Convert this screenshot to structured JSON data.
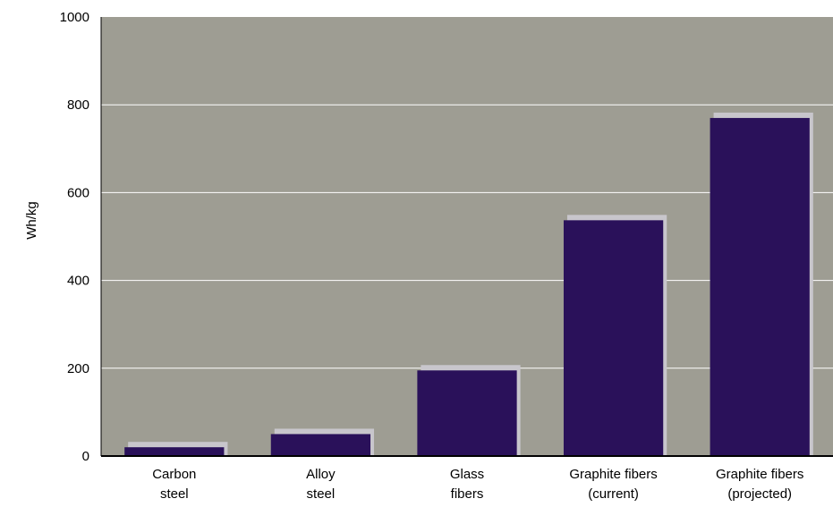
{
  "chart_data": {
    "type": "bar",
    "title": "",
    "xlabel": "",
    "ylabel": "Wh/kg",
    "ylim": [
      0,
      1000
    ],
    "yticks": [
      0,
      200,
      400,
      600,
      800,
      1000
    ],
    "grid": true,
    "categories": [
      [
        "Carbon",
        "steel"
      ],
      [
        "Alloy",
        "steel"
      ],
      [
        "Glass",
        "fibers"
      ],
      [
        "Graphite fibers",
        "(current)"
      ],
      [
        "Graphite fibers",
        "(projected)"
      ]
    ],
    "values": [
      20,
      50,
      195,
      537,
      770
    ],
    "colors": {
      "plot_background": "#9e9d93",
      "bar": "#2a115a",
      "bar_shadow": "#c8c6cc",
      "gridline": "#ffffff",
      "axis": "#000000"
    }
  }
}
